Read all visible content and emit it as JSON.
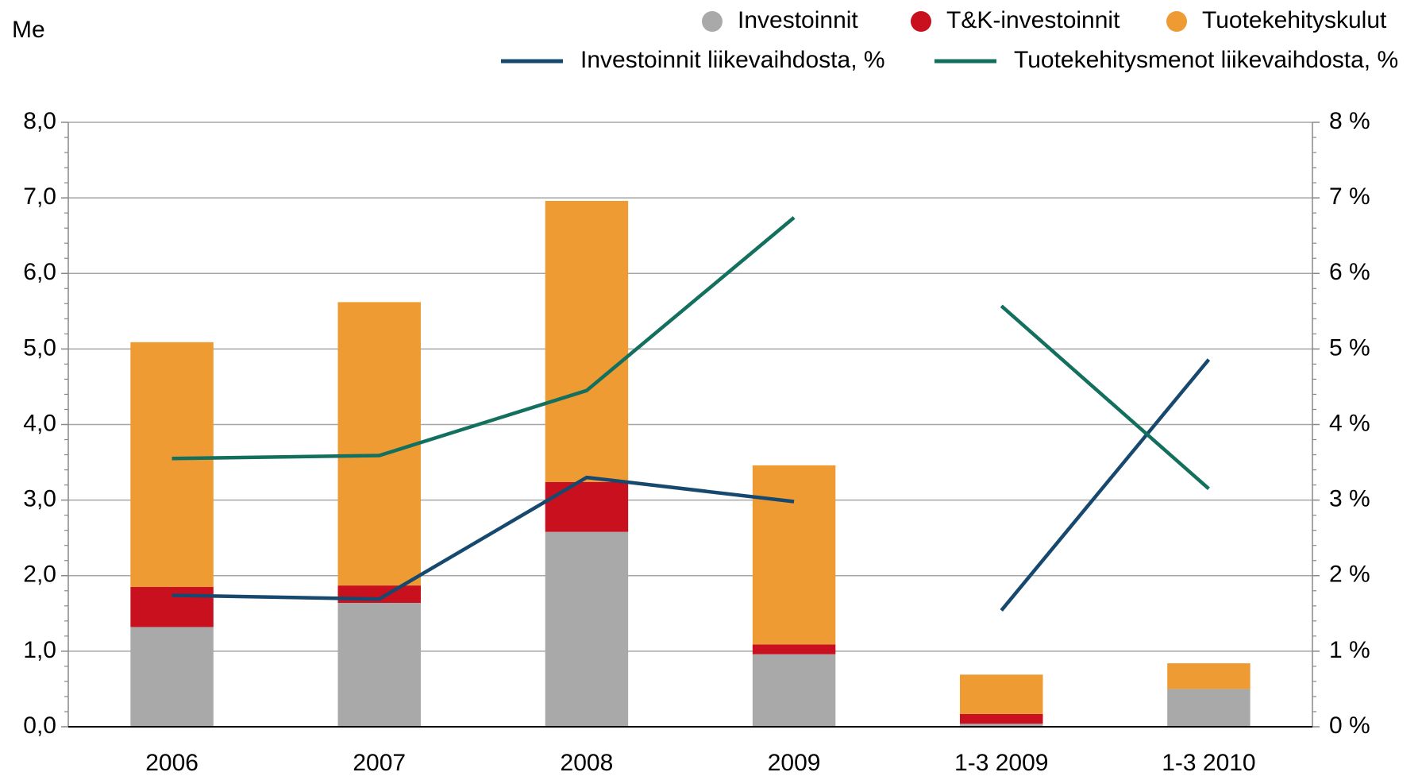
{
  "chart_data": {
    "type": "bar-line",
    "y_unit_label": "Me",
    "categories": [
      "2006",
      "2007",
      "2008",
      "2009",
      "1-3 2009",
      "1-3 2010"
    ],
    "series": [
      {
        "name": "Investoinnit",
        "type": "bar",
        "color": "#a9a9a9",
        "values": [
          1.32,
          1.64,
          2.58,
          0.96,
          0.04,
          0.5
        ]
      },
      {
        "name": "T&K-investoinnit",
        "type": "bar",
        "color": "#c8101e",
        "values": [
          0.53,
          0.23,
          0.66,
          0.13,
          0.13,
          0
        ]
      },
      {
        "name": "Tuotekehityskulut",
        "type": "bar",
        "color": "#ee9b33",
        "values": [
          3.24,
          3.75,
          3.72,
          2.37,
          0.52,
          0.34
        ]
      },
      {
        "name": "Investoinnit liikevaihdosta, %",
        "type": "line",
        "axis": "y2",
        "color": "#17496f",
        "values": [
          1.74,
          1.69,
          3.3,
          2.98,
          1.54,
          4.86
        ]
      },
      {
        "name": "Tuotekehitysmenot liikevaihdosta, %",
        "type": "line",
        "axis": "y2",
        "color": "#13705f",
        "values": [
          3.55,
          3.59,
          4.45,
          6.74,
          5.57,
          3.15
        ]
      }
    ],
    "line_breaks_after": [
      3
    ],
    "stacked": true,
    "ylim": [
      0,
      8
    ],
    "yticks": [
      {
        "value": 0,
        "label": "0,0"
      },
      {
        "value": 1,
        "label": "1,0"
      },
      {
        "value": 2,
        "label": "2,0"
      },
      {
        "value": 3,
        "label": "3,0"
      },
      {
        "value": 4,
        "label": "4,0"
      },
      {
        "value": 5,
        "label": "5,0"
      },
      {
        "value": 6,
        "label": "6,0"
      },
      {
        "value": 7,
        "label": "7,0"
      },
      {
        "value": 8,
        "label": "8,0"
      }
    ],
    "y2lim": [
      0,
      8
    ],
    "y2ticks": [
      {
        "value": 0,
        "label": "0 %"
      },
      {
        "value": 1,
        "label": "1 %"
      },
      {
        "value": 2,
        "label": "2 %"
      },
      {
        "value": 3,
        "label": "3 %"
      },
      {
        "value": 4,
        "label": "4 %"
      },
      {
        "value": 5,
        "label": "5 %"
      },
      {
        "value": 6,
        "label": "6 %"
      },
      {
        "value": 7,
        "label": "7 %"
      },
      {
        "value": 8,
        "label": "8 %"
      }
    ],
    "minor_tick_divisions": 5,
    "grid": true
  }
}
